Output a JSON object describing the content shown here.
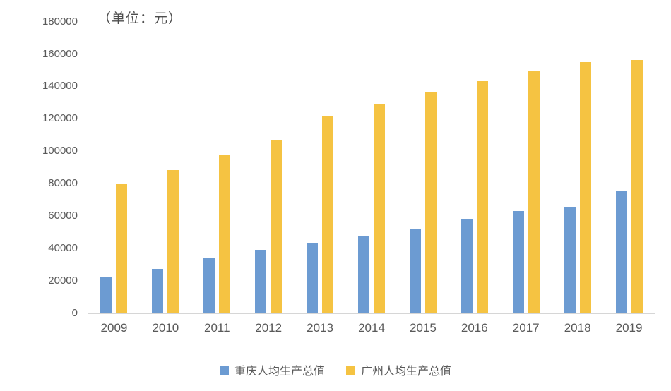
{
  "header": {
    "unit_label": "（单位：元）"
  },
  "chart_data": {
    "type": "bar",
    "title": "（单位：元）",
    "categories": [
      "2009",
      "2010",
      "2011",
      "2012",
      "2013",
      "2014",
      "2015",
      "2016",
      "2017",
      "2018",
      "2019"
    ],
    "series": [
      {
        "name": "重庆人均生产总值",
        "color": "#6C9BD2",
        "values": [
          22500,
          27500,
          34500,
          39000,
          43200,
          47500,
          52000,
          58000,
          63300,
          65900,
          75600
        ]
      },
      {
        "name": "广州人均生产总值",
        "color": "#F5C342",
        "values": [
          79800,
          88300,
          97800,
          106600,
          121500,
          129200,
          136800,
          143200,
          149900,
          155200,
          156200
        ]
      }
    ],
    "xlabel": "",
    "ylabel": "",
    "ylim": [
      0,
      180000
    ],
    "ytick_step": 20000,
    "ytick_labels": [
      "0",
      "20000",
      "40000",
      "60000",
      "80000",
      "100000",
      "120000",
      "140000",
      "160000",
      "180000"
    ],
    "grid": false,
    "legend_position": "bottom",
    "colors": {
      "axis_line": "#d6d6d6",
      "tick_text": "#595959",
      "title_text": "#4d4d4d"
    }
  }
}
